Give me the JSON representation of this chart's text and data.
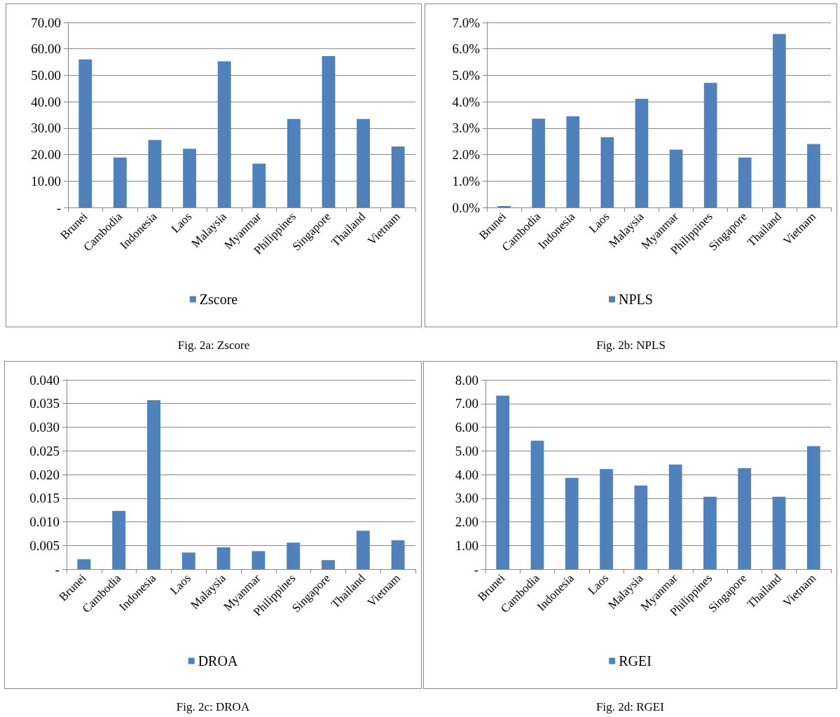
{
  "chart_data": [
    {
      "type": "bar",
      "categories": [
        "Brunei",
        "Cambodia",
        "Indonesia",
        "Laos",
        "Malaysia",
        "Myanmar",
        "Philippines",
        "Singapore",
        "Thailand",
        "Vietnam"
      ],
      "series": [
        {
          "name": "Zscore",
          "color": "#4f81bd",
          "values": [
            56.0,
            18.9,
            25.5,
            22.2,
            55.3,
            16.6,
            33.5,
            57.3,
            33.5,
            23.1
          ]
        }
      ],
      "ylim": [
        0,
        70
      ],
      "yticks": [
        {
          "value": 0,
          "label": "-"
        },
        {
          "value": 10,
          "label": "10.00"
        },
        {
          "value": 20,
          "label": "20.00"
        },
        {
          "value": 30,
          "label": "30.00"
        },
        {
          "value": 40,
          "label": "40.00"
        },
        {
          "value": 50,
          "label": "50.00"
        },
        {
          "value": 60,
          "label": "60.00"
        },
        {
          "value": 70,
          "label": "70.00"
        }
      ],
      "grid": "y",
      "legend": "bottom",
      "annotations": [
        "Fig. 2a: Zscore"
      ]
    },
    {
      "type": "bar",
      "categories": [
        "Brunei",
        "Cambodia",
        "Indonesia",
        "Laos",
        "Malaysia",
        "Myanmar",
        "Philippines",
        "Singapore",
        "Thailand",
        "Vietnam"
      ],
      "series": [
        {
          "name": "NPLS",
          "color": "#4f81bd",
          "values": [
            0.05,
            3.36,
            3.45,
            2.66,
            4.11,
            2.19,
            4.71,
            1.89,
            6.56,
            2.4
          ]
        }
      ],
      "ylim": [
        0,
        7
      ],
      "yticks": [
        {
          "value": 0,
          "label": "0.0%"
        },
        {
          "value": 1,
          "label": "1.0%"
        },
        {
          "value": 2,
          "label": "2.0%"
        },
        {
          "value": 3,
          "label": "3.0%"
        },
        {
          "value": 4,
          "label": "4.0%"
        },
        {
          "value": 5,
          "label": "5.0%"
        },
        {
          "value": 6,
          "label": "6.0%"
        },
        {
          "value": 7,
          "label": "7.0%"
        }
      ],
      "grid": "y",
      "legend": "bottom",
      "annotations": [
        "Fig. 2b: NPLS"
      ]
    },
    {
      "type": "bar",
      "categories": [
        "Brunei",
        "Cambodia",
        "Indonesia",
        "Laos",
        "Malaysia",
        "Myanmar",
        "Philippines",
        "Singapore",
        "Thailand",
        "Vietnam"
      ],
      "series": [
        {
          "name": "DROA",
          "color": "#4f81bd",
          "values": [
            0.0021,
            0.0123,
            0.0357,
            0.0035,
            0.0046,
            0.0038,
            0.0056,
            0.0019,
            0.0081,
            0.0061
          ]
        }
      ],
      "ylim": [
        0,
        0.04
      ],
      "yticks": [
        {
          "value": 0,
          "label": "-"
        },
        {
          "value": 0.005,
          "label": "0.005"
        },
        {
          "value": 0.01,
          "label": "0.010"
        },
        {
          "value": 0.015,
          "label": "0.015"
        },
        {
          "value": 0.02,
          "label": "0.020"
        },
        {
          "value": 0.025,
          "label": "0.025"
        },
        {
          "value": 0.03,
          "label": "0.030"
        },
        {
          "value": 0.035,
          "label": "0.035"
        },
        {
          "value": 0.04,
          "label": "0.040"
        }
      ],
      "grid": "y",
      "legend": "bottom",
      "annotations": [
        "Fig. 2c: DROA"
      ]
    },
    {
      "type": "bar",
      "categories": [
        "Brunei",
        "Cambodia",
        "Indonesia",
        "Laos",
        "Malaysia",
        "Myanmar",
        "Philippines",
        "Singapore",
        "Thailand",
        "Vietnam"
      ],
      "series": [
        {
          "name": "RGEI",
          "color": "#4f81bd",
          "values": [
            7.33,
            5.43,
            3.86,
            4.23,
            3.53,
            4.42,
            3.06,
            4.27,
            3.06,
            5.2
          ]
        }
      ],
      "ylim": [
        0,
        8
      ],
      "yticks": [
        {
          "value": 0,
          "label": "-"
        },
        {
          "value": 1,
          "label": "1.00"
        },
        {
          "value": 2,
          "label": "2.00"
        },
        {
          "value": 3,
          "label": "3.00"
        },
        {
          "value": 4,
          "label": "4.00"
        },
        {
          "value": 5,
          "label": "5.00"
        },
        {
          "value": 6,
          "label": "6.00"
        },
        {
          "value": 7,
          "label": "7.00"
        },
        {
          "value": 8,
          "label": "8.00"
        }
      ],
      "grid": "y",
      "legend": "bottom",
      "annotations": [
        "Fig. 2d: RGEI"
      ]
    }
  ]
}
